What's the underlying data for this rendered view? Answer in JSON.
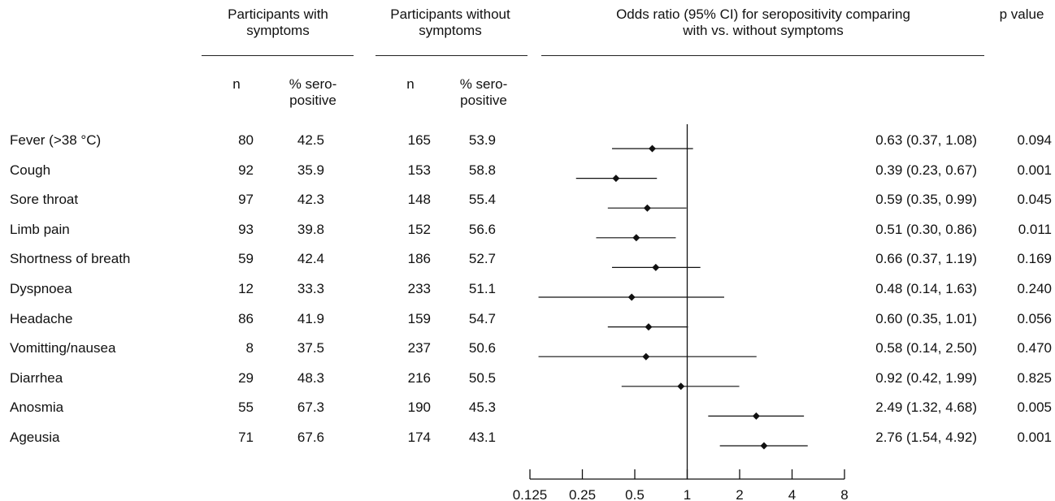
{
  "headers": {
    "with_symptoms": [
      "Participants with",
      "symptoms"
    ],
    "without_symptoms": [
      "Participants without",
      "symptoms"
    ],
    "odds_ratio": [
      "Odds ratio (95% CI) for seropositivity comparing",
      "with vs. without symptoms"
    ],
    "p_value": "p value",
    "n": "n",
    "pct_seropositive": [
      "% sero-",
      "positive"
    ]
  },
  "chart_data": {
    "type": "forest",
    "xscale": "log2",
    "xlim": [
      0.125,
      8
    ],
    "reference_line": 1,
    "x_ticks": [
      0.125,
      0.25,
      0.5,
      1,
      2,
      4,
      8
    ],
    "x_tick_labels": [
      "0.125",
      "0.25",
      "0.5",
      "1",
      "2",
      "4",
      "8"
    ],
    "rows": [
      {
        "label": "Fever (>38 °C)",
        "n_with": "80",
        "pct_with": "42.5",
        "n_without": "165",
        "pct_without": "53.9",
        "or": 0.63,
        "lo": 0.37,
        "hi": 1.08,
        "ci_text": "0.63 (0.37, 1.08)",
        "p": "0.094"
      },
      {
        "label": "Cough",
        "n_with": "92",
        "pct_with": "35.9",
        "n_without": "153",
        "pct_without": "58.8",
        "or": 0.39,
        "lo": 0.23,
        "hi": 0.67,
        "ci_text": "0.39 (0.23, 0.67)",
        "p": "0.001"
      },
      {
        "label": "Sore throat",
        "n_with": "97",
        "pct_with": "42.3",
        "n_without": "148",
        "pct_without": "55.4",
        "or": 0.59,
        "lo": 0.35,
        "hi": 0.99,
        "ci_text": "0.59 (0.35, 0.99)",
        "p": "0.045"
      },
      {
        "label": "Limb pain",
        "n_with": "93",
        "pct_with": "39.8",
        "n_without": "152",
        "pct_without": "56.6",
        "or": 0.51,
        "lo": 0.3,
        "hi": 0.86,
        "ci_text": "0.51 (0.30, 0.86)",
        "p": "0.011"
      },
      {
        "label": "Shortness of breath",
        "n_with": "59",
        "pct_with": "42.4",
        "n_without": "186",
        "pct_without": "52.7",
        "or": 0.66,
        "lo": 0.37,
        "hi": 1.19,
        "ci_text": "0.66 (0.37, 1.19)",
        "p": "0.169"
      },
      {
        "label": "Dyspnoea",
        "n_with": "12",
        "pct_with": "33.3",
        "n_without": "233",
        "pct_without": "51.1",
        "or": 0.48,
        "lo": 0.14,
        "hi": 1.63,
        "ci_text": "0.48 (0.14, 1.63)",
        "p": "0.240"
      },
      {
        "label": "Headache",
        "n_with": "86",
        "pct_with": "41.9",
        "n_without": "159",
        "pct_without": "54.7",
        "or": 0.6,
        "lo": 0.35,
        "hi": 1.01,
        "ci_text": "0.60 (0.35, 1.01)",
        "p": "0.056"
      },
      {
        "label": "Vomitting/nausea",
        "n_with": "8",
        "pct_with": "37.5",
        "n_without": "237",
        "pct_without": "50.6",
        "or": 0.58,
        "lo": 0.14,
        "hi": 2.5,
        "ci_text": "0.58 (0.14, 2.50)",
        "p": "0.470"
      },
      {
        "label": "Diarrhea",
        "n_with": "29",
        "pct_with": "48.3",
        "n_without": "216",
        "pct_without": "50.5",
        "or": 0.92,
        "lo": 0.42,
        "hi": 1.99,
        "ci_text": "0.92 (0.42, 1.99)",
        "p": "0.825"
      },
      {
        "label": "Anosmia",
        "n_with": "55",
        "pct_with": "67.3",
        "n_without": "190",
        "pct_without": "45.3",
        "or": 2.49,
        "lo": 1.32,
        "hi": 4.68,
        "ci_text": "2.49 (1.32, 4.68)",
        "p": "0.005"
      },
      {
        "label": "Ageusia",
        "n_with": "71",
        "pct_with": "67.6",
        "n_without": "174",
        "pct_without": "43.1",
        "or": 2.76,
        "lo": 1.54,
        "hi": 4.92,
        "ci_text": "2.76 (1.54, 4.92)",
        "p": "0.001"
      }
    ]
  }
}
